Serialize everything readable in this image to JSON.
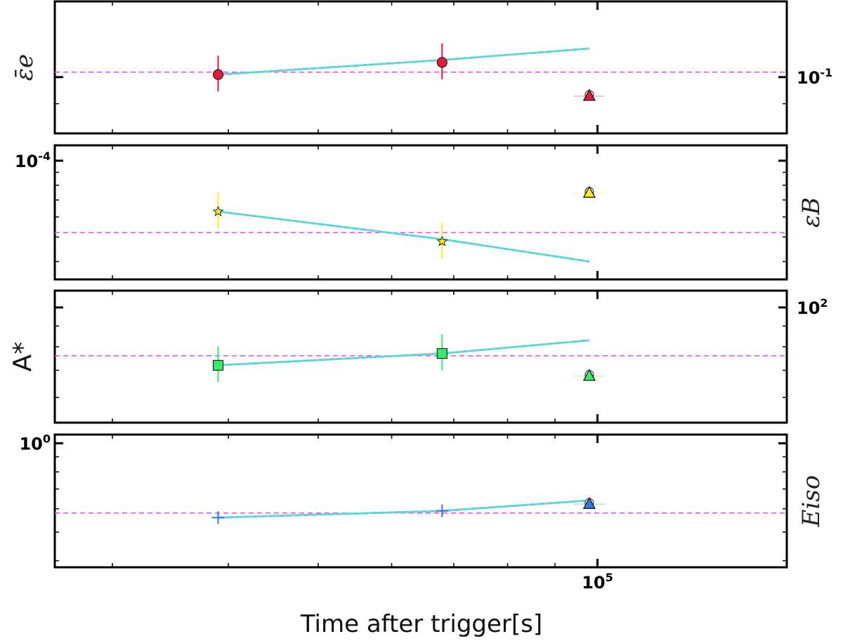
{
  "chart_data": [
    {
      "type": "scatter",
      "ylabel": "ε̄e",
      "ylabel_side": "left",
      "y_tick_label": {
        "base": "10",
        "exp": "-1",
        "side": "right"
      },
      "yscale": "log",
      "reference_level": 0.102,
      "colors": {
        "marker": "#e8173c",
        "errorbar": "#e8173c",
        "reference": "#ee44ee",
        "fit": "#33e5ea",
        "fit_shadow": "#bbbbbb"
      },
      "points": [
        {
          "x": 39000,
          "y": 0.101,
          "marker": "circle"
        },
        {
          "x": 68000,
          "y": 0.106,
          "marker": "circle"
        }
      ],
      "fit_line": [
        [
          39000,
          0.101
        ],
        [
          68000,
          0.107
        ],
        [
          98000,
          0.112
        ]
      ],
      "upper_limit": {
        "x": 98000,
        "y": 0.093,
        "marker": "triangle"
      }
    },
    {
      "type": "scatter",
      "ylabel": "εB",
      "ylabel_side": "right",
      "y_tick_label": {
        "base": "10",
        "exp": "-4",
        "side": "left"
      },
      "yscale": "log",
      "reference_level": 5.2e-05,
      "colors": {
        "marker": "#ffee22",
        "errorbar": "#ffee22",
        "reference": "#ee44ee",
        "fit": "#33e5ea",
        "fit_shadow": "#bbbbbb"
      },
      "points": [
        {
          "x": 39000,
          "y": 6.3e-05,
          "marker": "star"
        },
        {
          "x": 68000,
          "y": 4.8e-05,
          "marker": "star"
        }
      ],
      "fit_line": [
        [
          39000,
          6.3e-05
        ],
        [
          68000,
          4.9e-05
        ],
        [
          98000,
          4e-05
        ]
      ],
      "upper_limit": {
        "x": 98000,
        "y": 7.5e-05,
        "marker": "triangle"
      }
    },
    {
      "type": "scatter",
      "ylabel": "A*",
      "ylabel_side": "left",
      "y_tick_label": {
        "base": "10",
        "exp": "2",
        "side": "right"
      },
      "yscale": "log",
      "reference_level": 76,
      "colors": {
        "marker": "#33ee66",
        "errorbar": "#33ee66",
        "reference": "#ee44ee",
        "fit": "#33e5ea",
        "fit_shadow": "#bbbbbb"
      },
      "points": [
        {
          "x": 39000,
          "y": 72,
          "marker": "square"
        },
        {
          "x": 68000,
          "y": 77,
          "marker": "square"
        }
      ],
      "fit_line": [
        [
          39000,
          72
        ],
        [
          68000,
          77
        ],
        [
          98000,
          83
        ]
      ],
      "upper_limit": {
        "x": 98000,
        "y": 68,
        "marker": "triangle"
      }
    },
    {
      "type": "scatter",
      "ylabel": "Eiso",
      "ylabel_side": "right",
      "y_tick_label": {
        "base": "10",
        "exp": "0",
        "side": "left"
      },
      "yscale": "log",
      "reference_level": 0.58,
      "colors": {
        "marker": "#3377ee",
        "errorbar": "#3377ee",
        "reference": "#ee44ee",
        "fit": "#33e5ea",
        "fit_shadow": "#bbbbbb"
      },
      "points": [
        {
          "x": 39000,
          "y": 0.56,
          "marker": "plus"
        },
        {
          "x": 68000,
          "y": 0.59,
          "marker": "plus"
        }
      ],
      "fit_line": [
        [
          39000,
          0.56
        ],
        [
          68000,
          0.59
        ],
        [
          98000,
          0.64
        ]
      ],
      "upper_limit": {
        "x": 98000,
        "y": 0.625,
        "marker": "triangle"
      }
    }
  ],
  "x_axis": {
    "xlabel": "Time after trigger[s]",
    "xscale": "log",
    "xlim": [
      26000,
      160000
    ],
    "tick_label": {
      "base": "10",
      "exp": "5"
    }
  }
}
